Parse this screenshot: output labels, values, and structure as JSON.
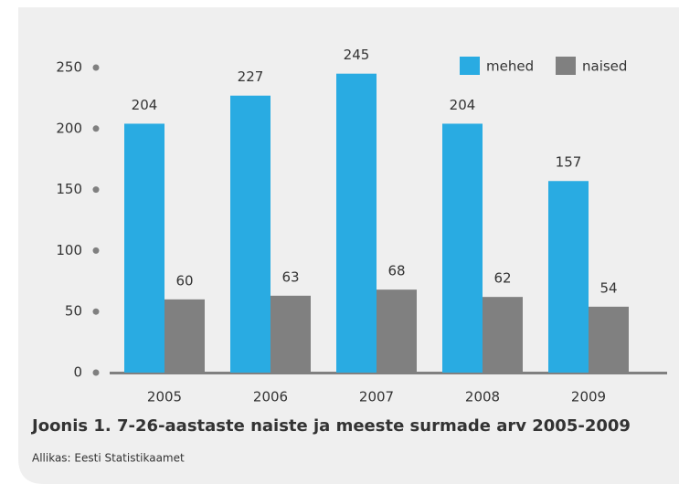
{
  "chart_data": {
    "type": "bar",
    "title": "Joonis 1. 7-26-aastaste naiste ja meeste surmade arv 2005-2009",
    "source": "Allikas: Eesti Statistikaamet",
    "categories": [
      "2005",
      "2006",
      "2007",
      "2008",
      "2009"
    ],
    "series": [
      {
        "name": "mehed",
        "color": "#29abe2",
        "values": [
          204,
          227,
          245,
          204,
          157
        ]
      },
      {
        "name": "naised",
        "color": "#808080",
        "values": [
          60,
          63,
          68,
          62,
          54
        ]
      }
    ],
    "ylim": [
      0,
      250
    ],
    "yticks": [
      0,
      50,
      100,
      150,
      200,
      250
    ],
    "legend": "top-right"
  }
}
